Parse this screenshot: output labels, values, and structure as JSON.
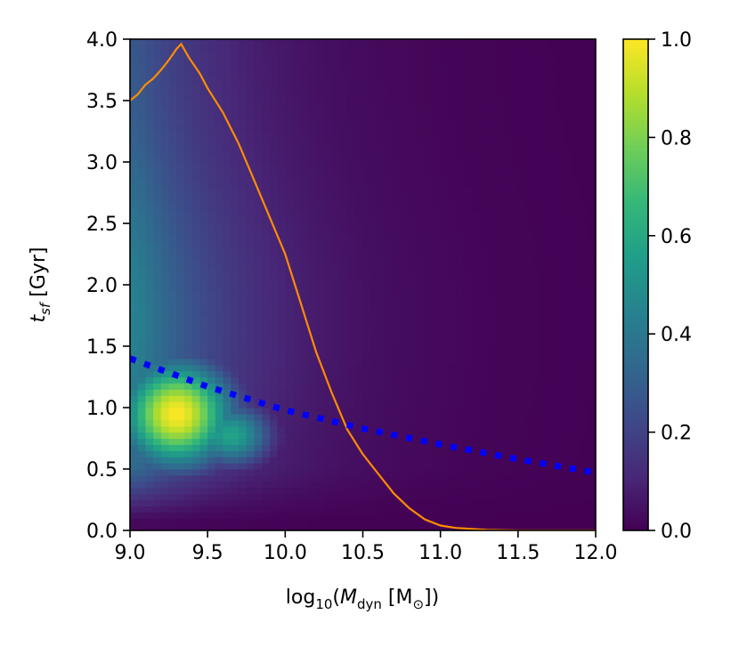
{
  "chart_data": {
    "type": "heatmap",
    "xlabel": {
      "pre": "log",
      "pre_sub": "10",
      "open": "(",
      "var": "M",
      "var_sub": "dyn",
      "unit_open": " [M",
      "unit_sub": "⊙",
      "close": "])"
    },
    "ylabel": {
      "var": "t",
      "var_sub": "sf",
      "unit": " [Gyr]"
    },
    "xlim": [
      9.0,
      12.0
    ],
    "ylim": [
      0.0,
      4.0
    ],
    "x_ticks": [
      9.0,
      9.5,
      10.0,
      10.5,
      11.0,
      11.5,
      12.0
    ],
    "x_tick_labels": [
      "9.0",
      "9.5",
      "10.0",
      "10.5",
      "11.0",
      "11.5",
      "12.0"
    ],
    "y_ticks": [
      0.0,
      0.5,
      1.0,
      1.5,
      2.0,
      2.5,
      3.0,
      3.5,
      4.0
    ],
    "y_tick_labels": [
      "0.0",
      "0.5",
      "1.0",
      "1.5",
      "2.0",
      "2.5",
      "3.0",
      "3.5",
      "4.0"
    ],
    "colorbar": {
      "colormap": "viridis",
      "range": [
        0.0,
        1.0
      ],
      "ticks": [
        0.0,
        0.2,
        0.4,
        0.6,
        0.8,
        1.0
      ],
      "tick_labels": [
        "0.0",
        "0.2",
        "0.4",
        "0.6",
        "0.8",
        "1.0"
      ]
    },
    "heatmap_peak": {
      "x": 9.3,
      "y": 0.95,
      "value": 1.0
    },
    "series": [
      {
        "style": "line",
        "color": "#ff8c00",
        "points": [
          [
            9.0,
            3.5
          ],
          [
            9.05,
            3.55
          ],
          [
            9.1,
            3.63
          ],
          [
            9.15,
            3.68
          ],
          [
            9.2,
            3.75
          ],
          [
            9.25,
            3.83
          ],
          [
            9.3,
            3.92
          ],
          [
            9.33,
            3.96
          ],
          [
            9.38,
            3.85
          ],
          [
            9.45,
            3.72
          ],
          [
            9.5,
            3.6
          ],
          [
            9.6,
            3.4
          ],
          [
            9.7,
            3.15
          ],
          [
            9.8,
            2.85
          ],
          [
            9.9,
            2.55
          ],
          [
            10.0,
            2.25
          ],
          [
            10.1,
            1.85
          ],
          [
            10.2,
            1.45
          ],
          [
            10.3,
            1.12
          ],
          [
            10.4,
            0.82
          ],
          [
            10.5,
            0.62
          ],
          [
            10.6,
            0.46
          ],
          [
            10.7,
            0.3
          ],
          [
            10.8,
            0.18
          ],
          [
            10.9,
            0.09
          ],
          [
            11.0,
            0.04
          ],
          [
            11.1,
            0.02
          ],
          [
            11.3,
            0.005
          ],
          [
            11.5,
            0.0
          ],
          [
            12.0,
            0.0
          ]
        ]
      },
      {
        "style": "dotted",
        "color": "#0000ff",
        "points": [
          [
            9.0,
            1.4
          ],
          [
            9.5,
            1.17
          ],
          [
            10.0,
            0.98
          ],
          [
            10.5,
            0.83
          ],
          [
            11.0,
            0.7
          ],
          [
            11.5,
            0.58
          ],
          [
            12.0,
            0.47
          ]
        ]
      }
    ]
  },
  "colors": {
    "viridis": [
      "#440154",
      "#482878",
      "#3e4989",
      "#31688e",
      "#26828e",
      "#1f9e89",
      "#35b779",
      "#6ece58",
      "#b5de2b",
      "#fde725"
    ]
  }
}
